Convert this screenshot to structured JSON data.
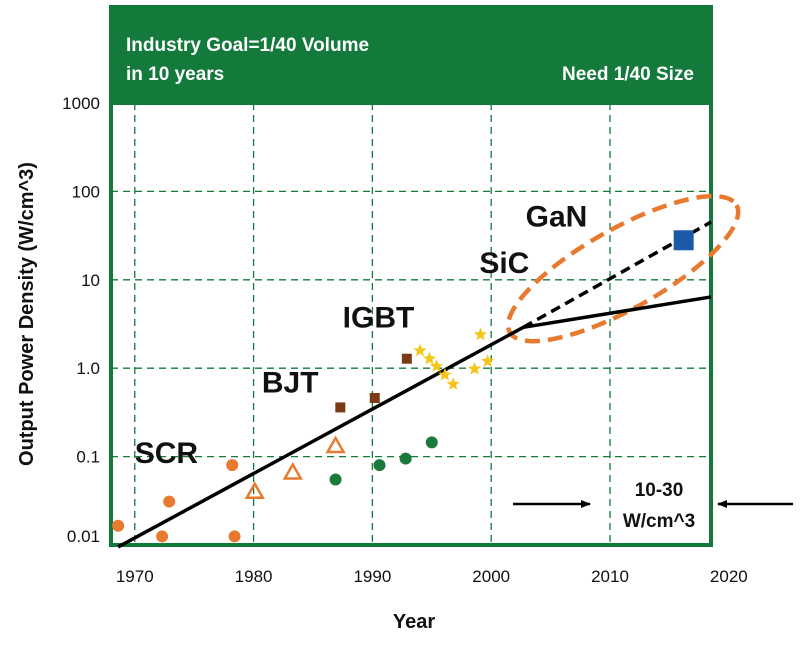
{
  "chart_data": {
    "type": "scatter",
    "y_scale": "log",
    "header": {
      "line1": "Industry Goal=1/40 Volume",
      "line2": "in 10 years",
      "right": "Need 1/40 Size"
    },
    "xlabel": "Year",
    "ylabel": "Output Power Density (W/cm^3)",
    "xlim": [
      1968,
      2018.5
    ],
    "ylim": [
      0.01,
      1000
    ],
    "x_ticks": [
      1970,
      1980,
      1990,
      2000,
      2010,
      2020
    ],
    "x_tick_labels": [
      "1970",
      "1980",
      "1990",
      "2000",
      "2010",
      "2020"
    ],
    "y_ticks": [
      0.01,
      0.1,
      1.0,
      10,
      100,
      1000
    ],
    "y_tick_labels": [
      "0.01",
      "0.1",
      "1.0",
      "10",
      "100",
      "1000"
    ],
    "grid": true,
    "series_labels": [
      {
        "name": "SCR",
        "x": 1970.0,
        "y": 0.085
      },
      {
        "name": "BJT",
        "x": 1980.7,
        "y": 0.53
      },
      {
        "name": "IGBT",
        "x": 1987.5,
        "y": 2.9
      },
      {
        "name": "SiC",
        "x": 1999.0,
        "y": 12.0
      },
      {
        "name": "GaN",
        "x": 2002.9,
        "y": 40.0
      }
    ],
    "series": [
      {
        "name": "SCR",
        "marker": "circle",
        "color": "#e87a2f",
        "points": [
          [
            1968.6,
            0.0165
          ],
          [
            1972.3,
            0.0125
          ],
          [
            1972.9,
            0.031
          ],
          [
            1978.2,
            0.08
          ],
          [
            1978.4,
            0.0125
          ]
        ]
      },
      {
        "name": "SCR open",
        "marker": "triangle-open",
        "color": "#e87a2f",
        "points": [
          [
            1980.1,
            0.04
          ],
          [
            1983.3,
            0.066
          ],
          [
            1986.9,
            0.132
          ]
        ]
      },
      {
        "name": "BJT",
        "marker": "square",
        "color": "#7b3a12",
        "points": [
          [
            1987.3,
            0.36
          ],
          [
            1990.2,
            0.46
          ],
          [
            1992.9,
            1.28
          ]
        ]
      },
      {
        "name": "IGBT",
        "marker": "star",
        "color": "#f5c518",
        "points": [
          [
            1994.0,
            1.58
          ],
          [
            1994.8,
            1.28
          ],
          [
            1995.4,
            1.05
          ],
          [
            1996.1,
            0.84
          ],
          [
            1996.8,
            0.66
          ],
          [
            1998.6,
            0.98
          ],
          [
            1999.1,
            2.4
          ],
          [
            1999.7,
            1.2
          ]
        ]
      },
      {
        "name": "green",
        "marker": "circle",
        "color": "#1a7a3c",
        "points": [
          [
            1986.9,
            0.055
          ],
          [
            1990.6,
            0.08
          ],
          [
            1992.8,
            0.095
          ],
          [
            1995.0,
            0.145
          ]
        ]
      },
      {
        "name": "GaN",
        "marker": "square",
        "color": "#1b5aab",
        "points": [
          [
            2016.2,
            28
          ]
        ]
      }
    ],
    "trend": {
      "start": [
        1968.6,
        0.0095
      ],
      "knee": [
        2002.7,
        2.9
      ],
      "end": [
        2018.5,
        6.4
      ],
      "dashed_end": [
        2018.5,
        45
      ]
    },
    "annotation": {
      "line1": "10-30",
      "line2": "W/cm^3"
    },
    "colors": {
      "header": "#137a3c",
      "frame": "#137a3c",
      "grid": "#137a3c",
      "ellipse": "#e87a2f",
      "line": "#000000"
    }
  }
}
